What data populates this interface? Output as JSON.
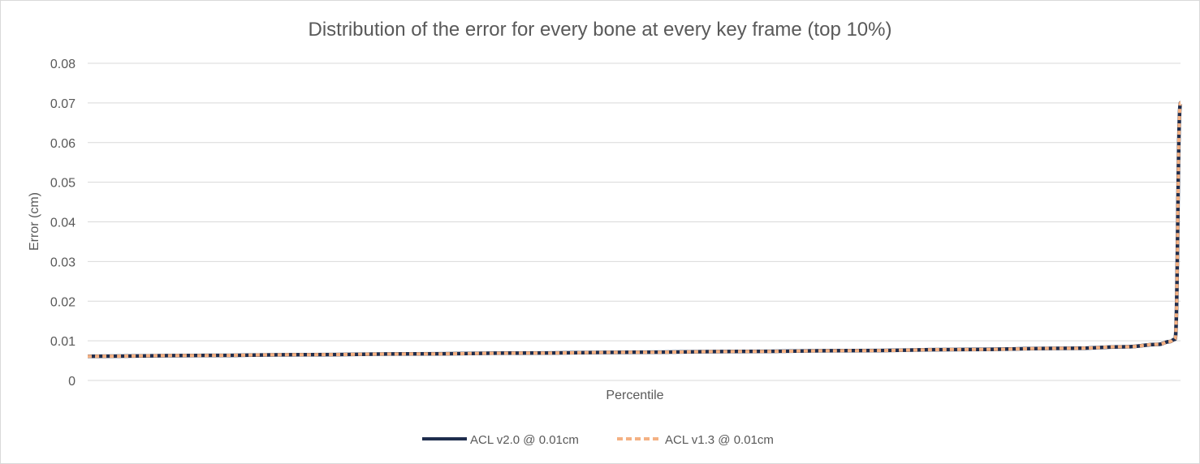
{
  "chart_data": {
    "type": "line",
    "title": "Distribution of the error for every bone at every key frame (top 10%)",
    "xlabel": "Percentile",
    "ylabel": "Error (cm)",
    "ylim": [
      0,
      0.08
    ],
    "yticks": [
      "0",
      "0.01",
      "0.02",
      "0.03",
      "0.04",
      "0.05",
      "0.06",
      "0.07",
      "0.08"
    ],
    "grid": true,
    "legend_position": "bottom",
    "x": [
      90,
      91,
      92,
      93,
      94,
      95,
      96,
      97,
      98,
      99,
      99.5,
      99.8,
      99.9,
      99.95,
      100
    ],
    "series": [
      {
        "name": "ACL v2.0 @ 0.01cm",
        "color": "#1f2d4d",
        "style": "solid",
        "values": [
          0.0061,
          0.0063,
          0.0065,
          0.0067,
          0.0069,
          0.0071,
          0.0073,
          0.0075,
          0.0078,
          0.0081,
          0.0085,
          0.0091,
          0.0098,
          0.0104,
          0.07
        ]
      },
      {
        "name": "ACL v1.3 @ 0.01cm",
        "color": "#f4b183",
        "style": "dashed",
        "values": [
          0.0061,
          0.0063,
          0.0065,
          0.0067,
          0.0069,
          0.0071,
          0.0073,
          0.0075,
          0.0078,
          0.0081,
          0.0085,
          0.0091,
          0.0098,
          0.0104,
          0.07
        ]
      }
    ]
  }
}
